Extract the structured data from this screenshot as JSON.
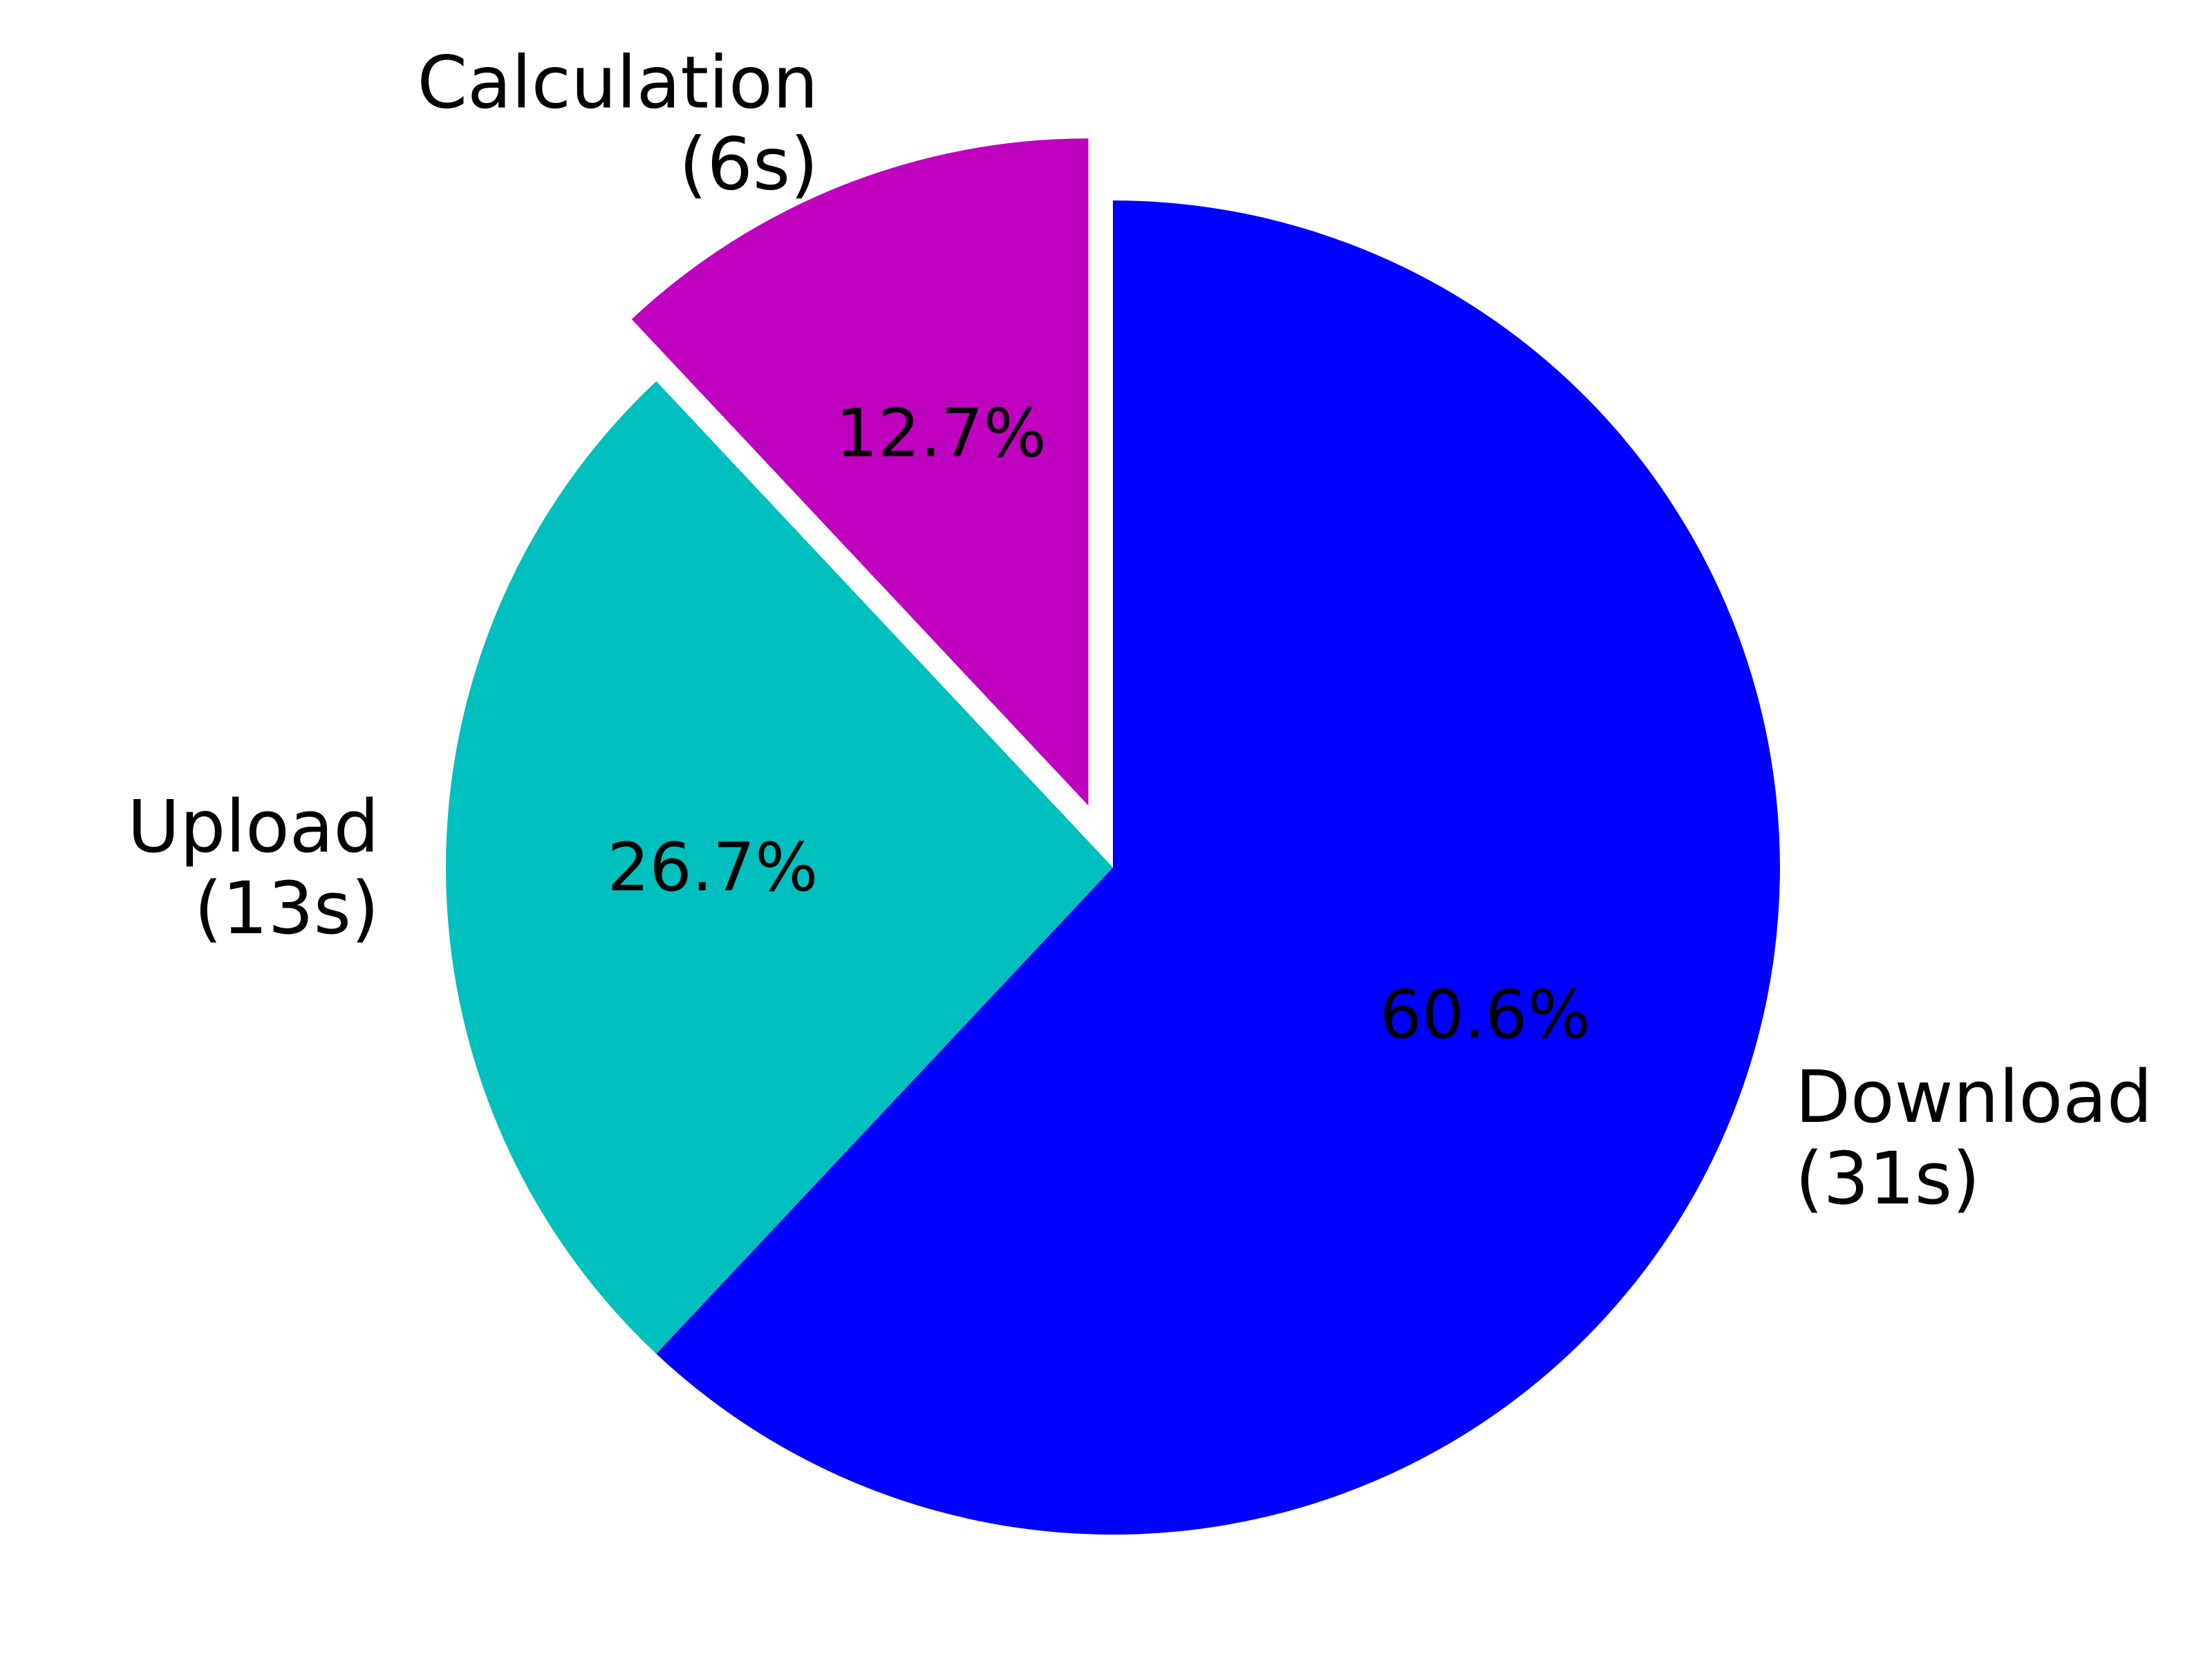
{
  "chart_data": {
    "type": "pie",
    "title": "",
    "slices": [
      {
        "name": "Calculation",
        "duration": "(6s)",
        "value": 6,
        "percent_label": "12.7%",
        "color": "#bf00bf",
        "exploded": true
      },
      {
        "name": "Upload",
        "duration": "(13s)",
        "value": 13,
        "percent_label": "26.7%",
        "color": "#00bfbf",
        "exploded": false
      },
      {
        "name": "Download",
        "duration": "(31s)",
        "value": 31,
        "percent_label": "60.6%",
        "color": "#0000ff",
        "exploded": false
      }
    ],
    "start_angle_deg": 90,
    "direction": "counterclockwise",
    "legend": "none"
  }
}
